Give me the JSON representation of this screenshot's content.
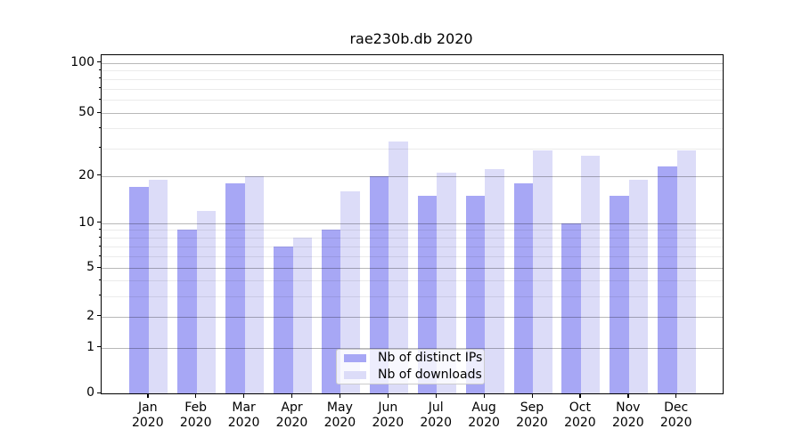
{
  "chart_data": {
    "type": "bar",
    "title": "rae230b.db 2020",
    "categories": [
      "Jan",
      "Feb",
      "Mar",
      "Apr",
      "May",
      "Jun",
      "Jul",
      "Aug",
      "Sep",
      "Oct",
      "Nov",
      "Dec"
    ],
    "year_label": "2020",
    "series": [
      {
        "name": "Nb of distinct IPs",
        "color": "#a7a7f5",
        "values": [
          17,
          9,
          18,
          7,
          9,
          20,
          15,
          15,
          18,
          10,
          15,
          23
        ]
      },
      {
        "name": "Nb of downloads",
        "color": "#dcdcf8",
        "values": [
          19,
          12,
          20,
          8,
          16,
          33,
          21,
          22,
          29,
          27,
          19,
          29
        ]
      }
    ],
    "yaxis": {
      "scale": "log-like (0,1,2,5,10,20,50,100)",
      "major_ticks": [
        0,
        1,
        2,
        5,
        10,
        20,
        50,
        100
      ],
      "minor_ticks": [
        3,
        4,
        6,
        7,
        8,
        9,
        30,
        40,
        60,
        70,
        80,
        90
      ],
      "ylim": [
        0,
        100
      ]
    },
    "grid": "on",
    "legend_position": "lower center (inside axes)"
  },
  "colors": {
    "bar_dark": "#a7a7f5",
    "bar_light": "#dcdcf8",
    "grid_major": "rgba(0,0,0,0.28)",
    "grid_minor": "rgba(0,0,0,0.08)",
    "spine": "#000000",
    "legend_border": "#cccccc"
  }
}
